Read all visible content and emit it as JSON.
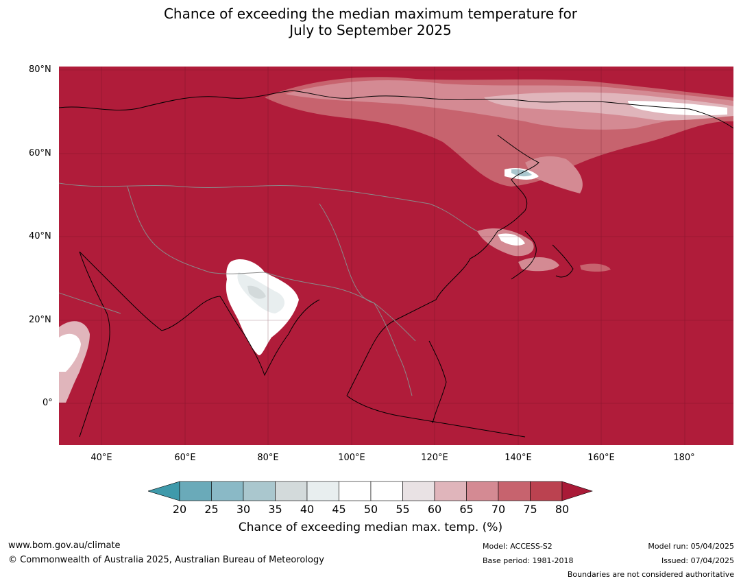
{
  "title_line1": "Chance of exceeding the median maximum temperature for",
  "title_line2": "July to September 2025",
  "map": {
    "background_color": "#b01c3a",
    "lat_labels": [
      "80°N",
      "60°N",
      "40°N",
      "20°N",
      "0°"
    ],
    "lon_labels": [
      "40°E",
      "60°E",
      "80°E",
      "100°E",
      "120°E",
      "140°E",
      "160°E",
      "180°"
    ]
  },
  "colorbar": {
    "ticks": [
      "20",
      "25",
      "30",
      "35",
      "40",
      "45",
      "50",
      "55",
      "60",
      "65",
      "70",
      "75",
      "80"
    ],
    "colors": [
      "#3f9aab",
      "#6aaab9",
      "#8ab9c6",
      "#aac7ce",
      "#d3dadb",
      "#e8eeef",
      "#ffffff",
      "#ffffff",
      "#e9e2e4",
      "#e0b5bb",
      "#d48a93",
      "#c7636e",
      "#bb4250",
      "#a91a37"
    ],
    "label": "Chance of exceeding median max. temp. (%)"
  },
  "footer": {
    "website": "www.bom.gov.au/climate",
    "copyright": "© Commonwealth of Australia 2025, Australian Bureau of Meteorology",
    "model": "Model: ACCESS-S2",
    "base_period": "Base period: 1981-2018",
    "model_run": "Model run: 05/04/2025",
    "issued": "Issued: 07/04/2025",
    "disclaimer": "Boundaries are not considered authoritative"
  }
}
